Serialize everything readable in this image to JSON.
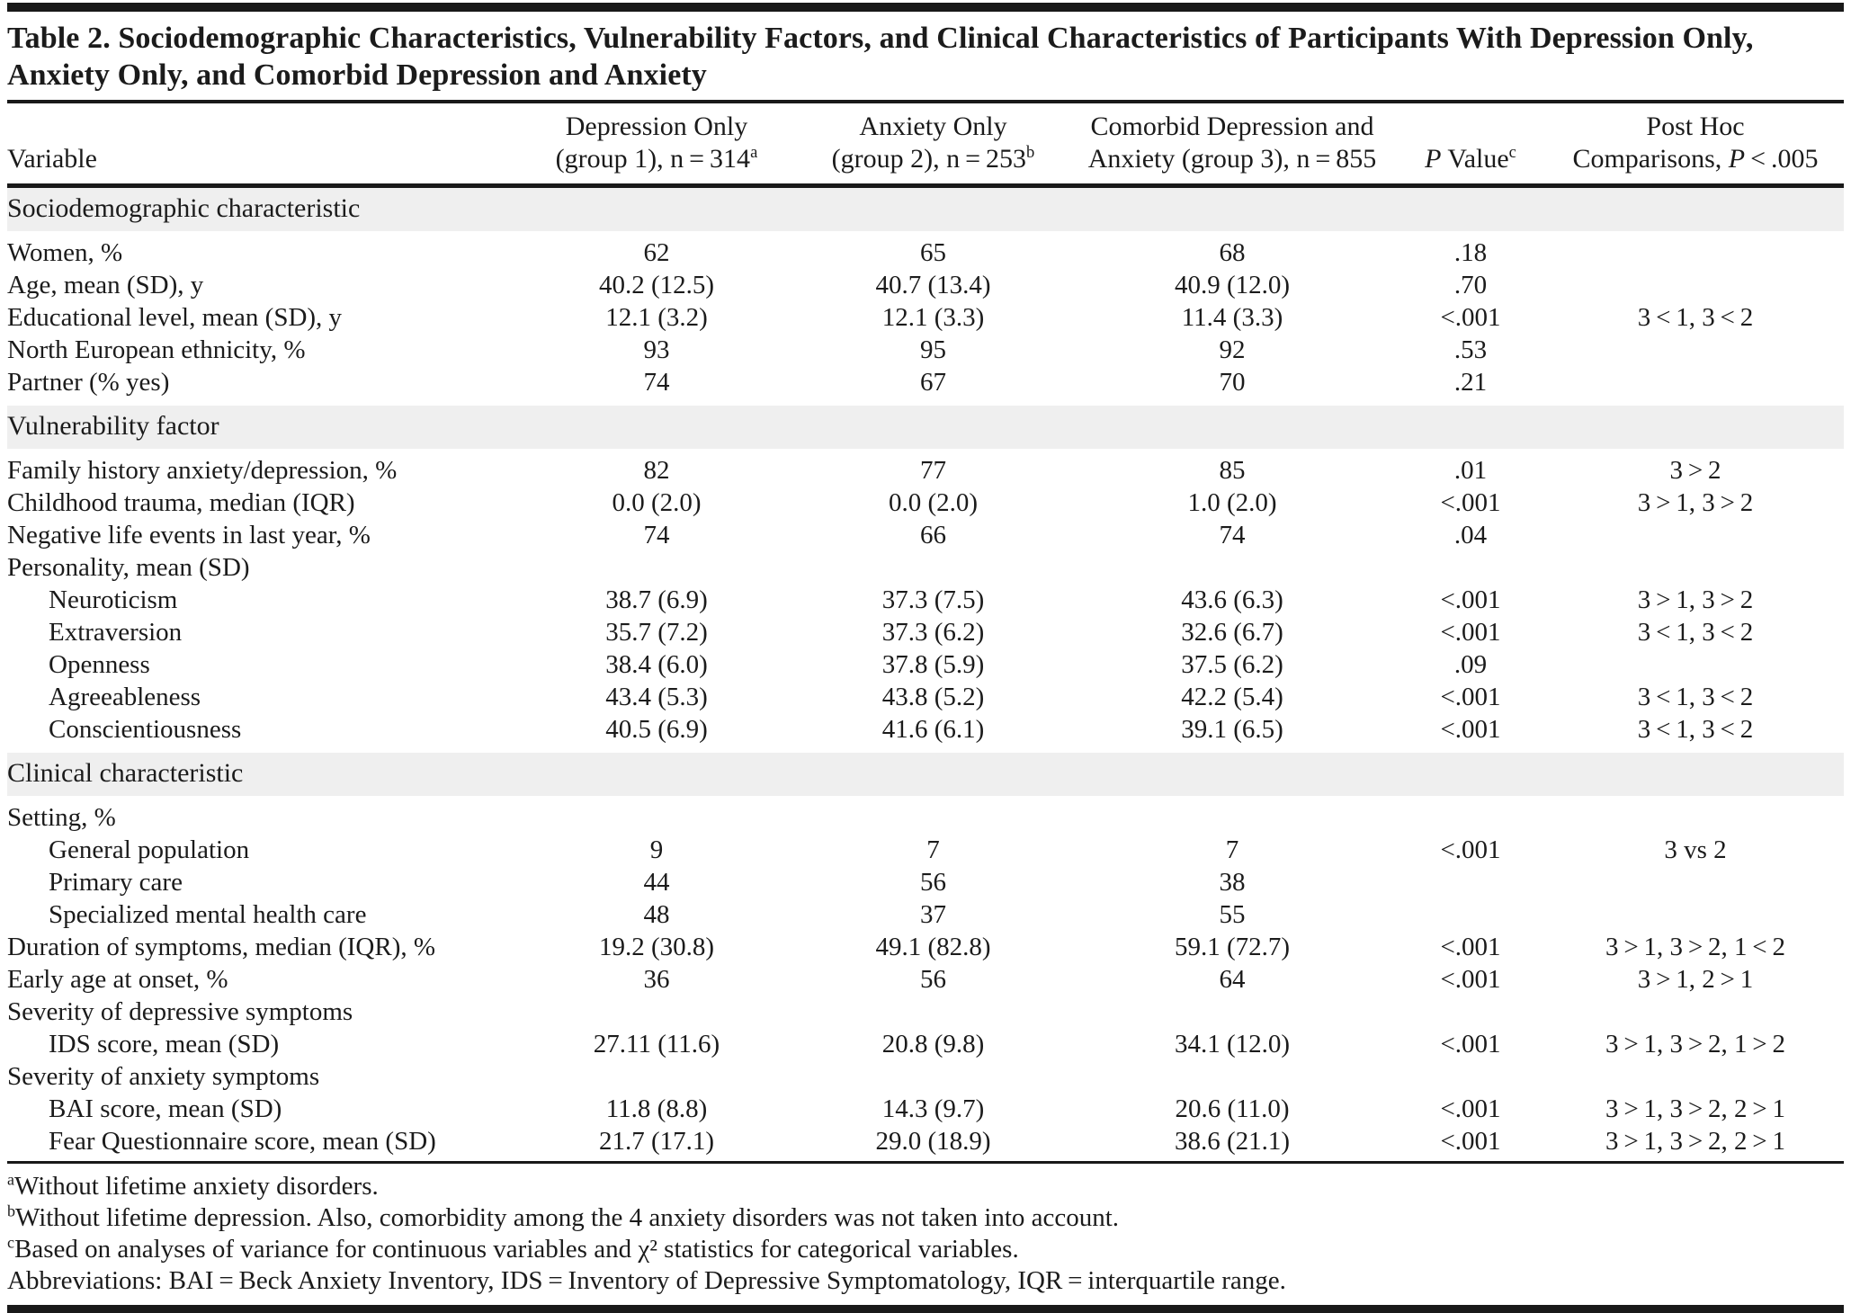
{
  "title": "Table 2. Sociodemographic Characteristics, Vulnerability Factors, and Clinical Characteristics of Participants With Depression Only, Anxiety Only, and Comorbid Depression and Anxiety",
  "header": {
    "variable": "Variable",
    "group1_line1": "Depression Only",
    "group1_line2": "(group 1), n = 314",
    "group1_sup": "a",
    "group2_line1": "Anxiety Only",
    "group2_line2": "(group 2), n = 253",
    "group2_sup": "b",
    "group3_line1": "Comorbid Depression and",
    "group3_line2": "Anxiety (group 3), n = 855",
    "pvalue_italic": "P",
    "pvalue_text": " Value",
    "pvalue_sup": "c",
    "posthoc_line1": "Post Hoc",
    "posthoc_line2_pre": "Comparisons, ",
    "posthoc_italic": "P",
    "posthoc_line2_post": " < .005"
  },
  "rows": [
    {
      "type": "section",
      "label": "Sociodemographic characteristic"
    },
    {
      "type": "data",
      "indent": 0,
      "label": "Women, %",
      "g1": "62",
      "g2": "65",
      "g3": "68",
      "p": ".18",
      "posthoc": ""
    },
    {
      "type": "data",
      "indent": 0,
      "label": "Age, mean (SD), y",
      "g1": "40.2 (12.5)",
      "g2": "40.7 (13.4)",
      "g3": "40.9 (12.0)",
      "p": ".70",
      "posthoc": ""
    },
    {
      "type": "data",
      "indent": 0,
      "label": "Educational level, mean (SD), y",
      "g1": "12.1 (3.2)",
      "g2": "12.1 (3.3)",
      "g3": "11.4 (3.3)",
      "p": "<.001",
      "posthoc": "3 < 1, 3 < 2"
    },
    {
      "type": "data",
      "indent": 0,
      "label": "North European ethnicity, %",
      "g1": "93",
      "g2": "95",
      "g3": "92",
      "p": ".53",
      "posthoc": ""
    },
    {
      "type": "data",
      "indent": 0,
      "label": "Partner (% yes)",
      "g1": "74",
      "g2": "67",
      "g3": "70",
      "p": ".21",
      "posthoc": ""
    },
    {
      "type": "section",
      "label": "Vulnerability factor"
    },
    {
      "type": "data",
      "indent": 0,
      "label": "Family history anxiety/depression, %",
      "g1": "82",
      "g2": "77",
      "g3": "85",
      "p": ".01",
      "posthoc": "3 > 2"
    },
    {
      "type": "data",
      "indent": 0,
      "label": "Childhood trauma, median (IQR)",
      "g1": "0.0 (2.0)",
      "g2": "0.0 (2.0)",
      "g3": "1.0 (2.0)",
      "p": "<.001",
      "posthoc": "3 > 1, 3 > 2"
    },
    {
      "type": "data",
      "indent": 0,
      "label": "Negative life events in last year, %",
      "g1": "74",
      "g2": "66",
      "g3": "74",
      "p": ".04",
      "posthoc": ""
    },
    {
      "type": "label",
      "indent": 0,
      "label": "Personality, mean (SD)"
    },
    {
      "type": "data",
      "indent": 1,
      "label": "Neuroticism",
      "g1": "38.7 (6.9)",
      "g2": "37.3 (7.5)",
      "g3": "43.6 (6.3)",
      "p": "<.001",
      "posthoc": "3 > 1, 3 > 2"
    },
    {
      "type": "data",
      "indent": 1,
      "label": "Extraversion",
      "g1": "35.7 (7.2)",
      "g2": "37.3 (6.2)",
      "g3": "32.6 (6.7)",
      "p": "<.001",
      "posthoc": "3 < 1, 3 < 2"
    },
    {
      "type": "data",
      "indent": 1,
      "label": "Openness",
      "g1": "38.4 (6.0)",
      "g2": "37.8 (5.9)",
      "g3": "37.5 (6.2)",
      "p": ".09",
      "posthoc": ""
    },
    {
      "type": "data",
      "indent": 1,
      "label": "Agreeableness",
      "g1": "43.4 (5.3)",
      "g2": "43.8 (5.2)",
      "g3": "42.2 (5.4)",
      "p": "<.001",
      "posthoc": "3 < 1, 3 < 2"
    },
    {
      "type": "data",
      "indent": 1,
      "label": "Conscientiousness",
      "g1": "40.5 (6.9)",
      "g2": "41.6 (6.1)",
      "g3": "39.1 (6.5)",
      "p": "<.001",
      "posthoc": "3 < 1, 3 < 2"
    },
    {
      "type": "section",
      "label": "Clinical characteristic"
    },
    {
      "type": "label",
      "indent": 0,
      "label": "Setting, %"
    },
    {
      "type": "data",
      "indent": 1,
      "label": "General population",
      "g1": "9",
      "g2": "7",
      "g3": "7",
      "p": "<.001",
      "posthoc": "3 vs 2"
    },
    {
      "type": "data",
      "indent": 1,
      "label": "Primary care",
      "g1": "44",
      "g2": "56",
      "g3": "38",
      "p": "",
      "posthoc": ""
    },
    {
      "type": "data",
      "indent": 1,
      "label": "Specialized mental health care",
      "g1": "48",
      "g2": "37",
      "g3": "55",
      "p": "",
      "posthoc": ""
    },
    {
      "type": "data",
      "indent": 0,
      "label": "Duration of symptoms, median (IQR), %",
      "g1": "19.2 (30.8)",
      "g2": "49.1 (82.8)",
      "g3": "59.1 (72.7)",
      "p": "<.001",
      "posthoc": "3 > 1, 3 > 2, 1 < 2"
    },
    {
      "type": "data",
      "indent": 0,
      "label": "Early age at onset, %",
      "g1": "36",
      "g2": "56",
      "g3": "64",
      "p": "<.001",
      "posthoc": "3 > 1, 2 > 1"
    },
    {
      "type": "label",
      "indent": 0,
      "label": "Severity of depressive symptoms"
    },
    {
      "type": "data",
      "indent": 1,
      "label": "IDS score, mean (SD)",
      "g1": "27.11 (11.6)",
      "g2": "20.8 (9.8)",
      "g3": "34.1 (12.0)",
      "p": "<.001",
      "posthoc": "3 > 1, 3 > 2, 1 > 2"
    },
    {
      "type": "label",
      "indent": 0,
      "label": "Severity of anxiety symptoms"
    },
    {
      "type": "data",
      "indent": 1,
      "label": "BAI score, mean (SD)",
      "g1": "11.8 (8.8)",
      "g2": "14.3 (9.7)",
      "g3": "20.6 (11.0)",
      "p": "<.001",
      "posthoc": "3 > 1, 3 > 2, 2 > 1"
    },
    {
      "type": "data",
      "indent": 1,
      "label": "Fear Questionnaire score, mean (SD)",
      "g1": "21.7 (17.1)",
      "g2": "29.0 (18.9)",
      "g3": "38.6 (21.1)",
      "p": "<.001",
      "posthoc": "3 > 1, 3 > 2, 2 > 1"
    }
  ],
  "footnotes": [
    {
      "sup": "a",
      "text": "Without lifetime anxiety disorders."
    },
    {
      "sup": "b",
      "text": "Without lifetime depression. Also, comorbidity among the 4 anxiety disorders was not taken into account."
    },
    {
      "sup": "c",
      "text": "Based on analyses of variance for continuous variables and χ² statistics for categorical variables."
    },
    {
      "sup": "",
      "text": "Abbreviations: BAI = Beck Anxiety Inventory, IDS = Inventory of Depressive Symptomatology, IQR = interquartile range."
    }
  ],
  "colors": {
    "section_bg": "#efefef",
    "rule": "#191919",
    "text": "#1b1b1b",
    "background": "#ffffff"
  }
}
